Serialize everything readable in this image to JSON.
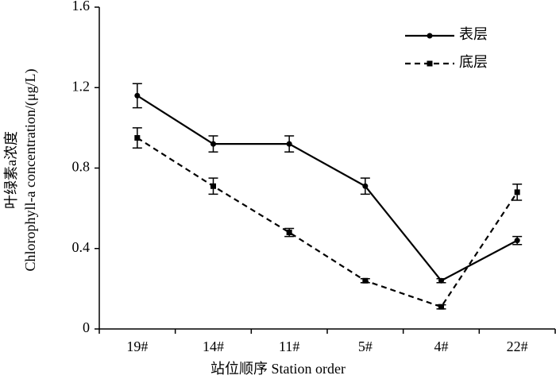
{
  "chart_data": {
    "type": "line",
    "x_label": "站位顺序 Station order",
    "y_label": [
      "叶绿素a浓度",
      "Chlorophyll-a concentration/(μg/L)"
    ],
    "categories": [
      "19#",
      "14#",
      "11#",
      "5#",
      "4#",
      "22#"
    ],
    "series": [
      {
        "name": "表层",
        "color": "#000000",
        "dashed": false,
        "marker": "circle",
        "values": [
          1.16,
          0.92,
          0.92,
          0.71,
          0.24,
          0.44
        ],
        "errors": [
          0.06,
          0.04,
          0.04,
          0.04,
          0.01,
          0.02
        ]
      },
      {
        "name": "底层",
        "color": "#000000",
        "dashed": true,
        "marker": "square",
        "values": [
          0.95,
          0.71,
          0.48,
          0.24,
          0.11,
          0.68
        ],
        "errors": [
          0.05,
          0.04,
          0.02,
          0.01,
          0.01,
          0.04
        ]
      }
    ],
    "ylim": [
      0,
      1.6
    ],
    "yticks": [
      0,
      0.4,
      0.8,
      1.2,
      1.6
    ],
    "grid": false,
    "legend": "upper right"
  }
}
